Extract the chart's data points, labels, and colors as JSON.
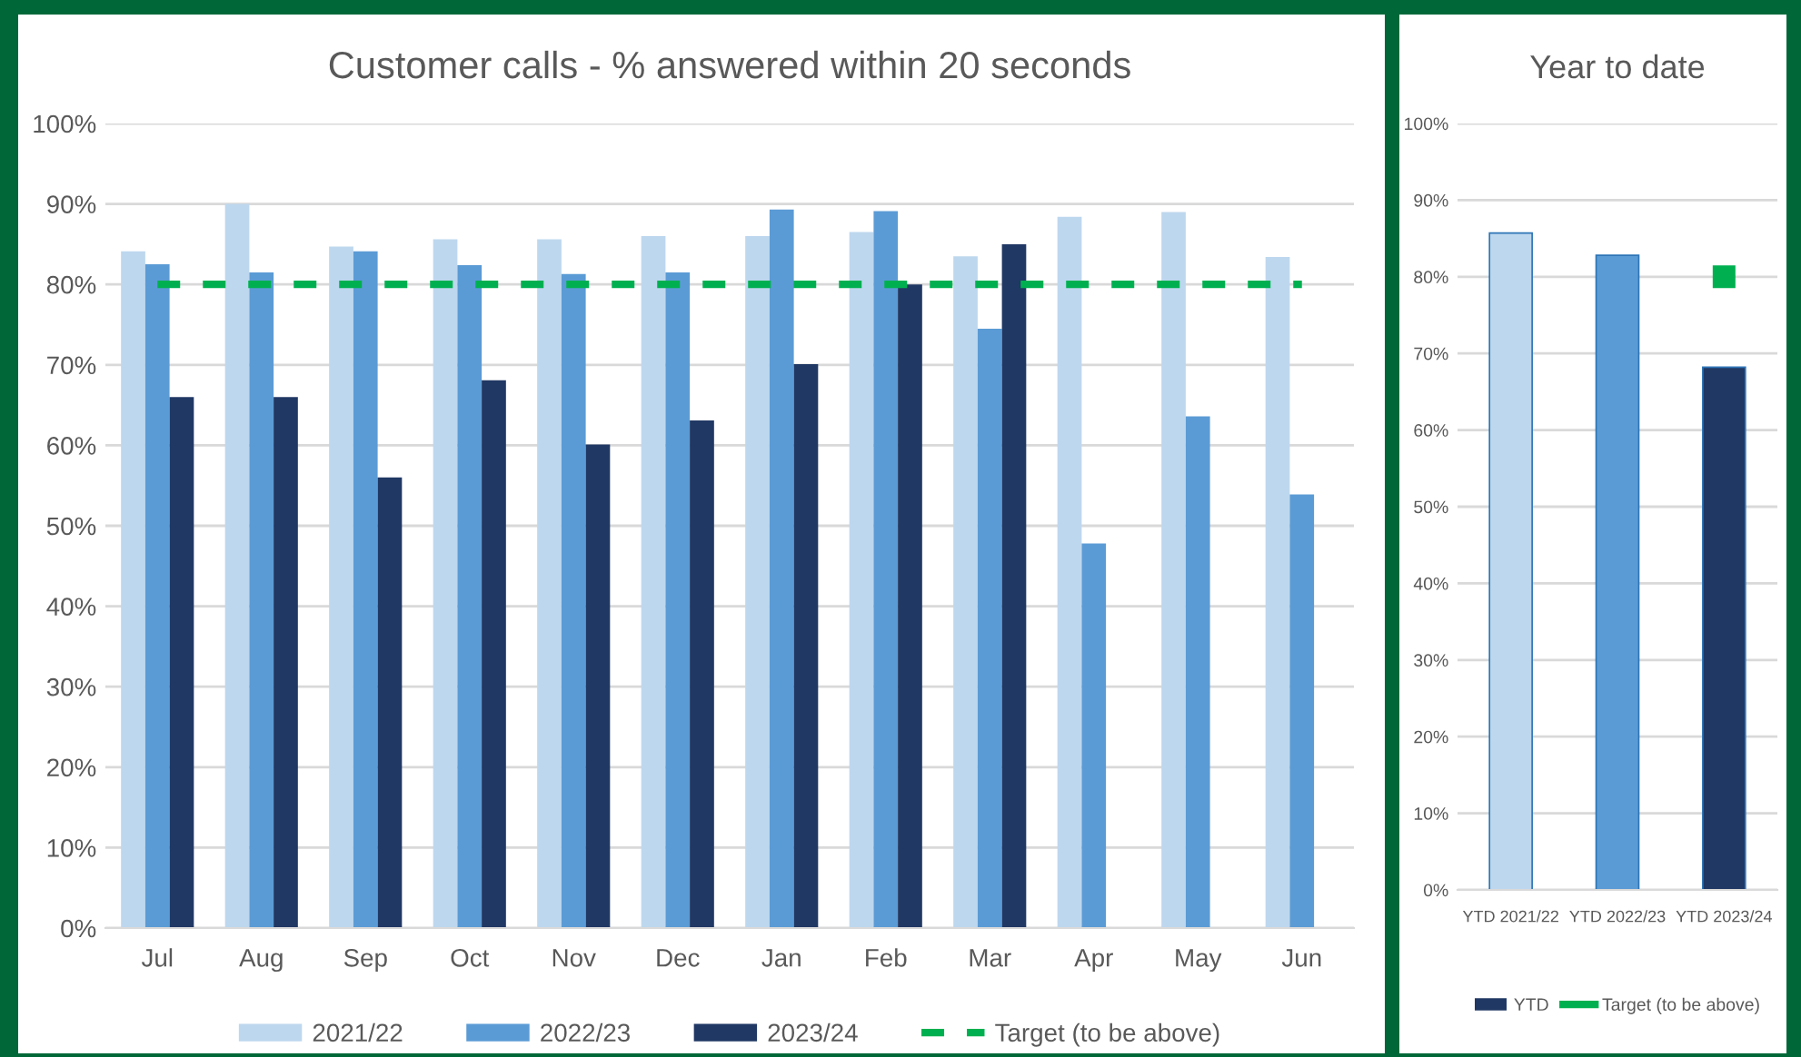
{
  "chart_data": [
    {
      "type": "bar",
      "title": "Customer calls - % answered within 20 seconds",
      "categories": [
        "Jul",
        "Aug",
        "Sep",
        "Oct",
        "Nov",
        "Dec",
        "Jan",
        "Feb",
        "Mar",
        "Apr",
        "May",
        "Jun"
      ],
      "series": [
        {
          "name": "2021/22",
          "color": "#bdd7ee",
          "values": [
            84.1,
            90,
            84.7,
            85.6,
            85.6,
            86.0,
            86.0,
            86.5,
            83.5,
            88.4,
            89.0,
            83.4
          ]
        },
        {
          "name": "2022/23",
          "color": "#5b9bd5",
          "values": [
            82.5,
            81.5,
            84.1,
            82.4,
            81.3,
            81.5,
            89.3,
            89.1,
            74.5,
            47.8,
            63.6,
            53.9
          ]
        },
        {
          "name": "2023/24",
          "color": "#203864",
          "values": [
            66.0,
            66.0,
            56.0,
            68.1,
            60.1,
            63.1,
            70.1,
            80.0,
            85.0,
            null,
            null,
            null
          ]
        },
        {
          "name": "Target (to be above)",
          "type": "line",
          "color": "#00b050",
          "line_style": "dashed",
          "values": [
            80,
            80,
            80,
            80,
            80,
            80,
            80,
            80,
            80,
            80,
            80,
            80
          ]
        }
      ],
      "ylim": [
        0,
        100
      ],
      "yticks": [
        {
          "value": 0,
          "label": "0%"
        },
        {
          "value": 10,
          "label": "10%"
        },
        {
          "value": 20,
          "label": "20%"
        },
        {
          "value": 30,
          "label": "30%"
        },
        {
          "value": 40,
          "label": "40%"
        },
        {
          "value": 50,
          "label": "50%"
        },
        {
          "value": 60,
          "label": "60%"
        },
        {
          "value": 70,
          "label": "70%"
        },
        {
          "value": 80,
          "label": "80%"
        },
        {
          "value": 90,
          "label": "90%"
        },
        {
          "value": 100,
          "label": "100%"
        }
      ],
      "grid": "y",
      "legend": "bottom"
    },
    {
      "type": "bar",
      "title": "Year to date",
      "categories": [
        "YTD 2021/22",
        "YTD 2022/23",
        "YTD 2023/24"
      ],
      "series": [
        {
          "name": "YTD",
          "color": "#203864",
          "colors": [
            "#bdd7ee",
            "#5b9bd5",
            "#203864"
          ],
          "values": [
            85.7,
            82.8,
            68.2
          ]
        },
        {
          "name": "Target (to be above)",
          "type": "line",
          "color": "#00b050",
          "marker": "square",
          "values": [
            null,
            null,
            80
          ]
        }
      ],
      "ylim": [
        0,
        100
      ],
      "yticks": [
        {
          "value": 0,
          "label": "0%"
        },
        {
          "value": 10,
          "label": "10%"
        },
        {
          "value": 20,
          "label": "20%"
        },
        {
          "value": 30,
          "label": "30%"
        },
        {
          "value": 40,
          "label": "40%"
        },
        {
          "value": 50,
          "label": "50%"
        },
        {
          "value": 60,
          "label": "60%"
        },
        {
          "value": 70,
          "label": "70%"
        },
        {
          "value": 80,
          "label": "80%"
        },
        {
          "value": 90,
          "label": "90%"
        },
        {
          "value": 100,
          "label": "100%"
        }
      ],
      "grid": "y",
      "legend": "bottom"
    }
  ]
}
